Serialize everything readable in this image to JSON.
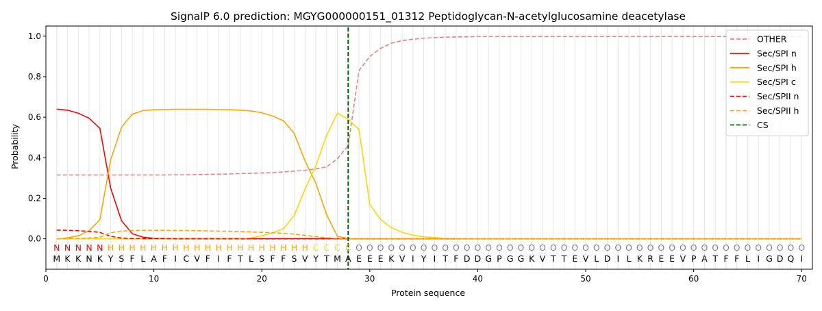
{
  "chart_data": {
    "type": "line",
    "title": "SignalP 6.0 prediction: MGYG000000151_01312 Peptidoglycan-N-acetylglucosamine deacetylase",
    "xlabel": "Protein sequence",
    "ylabel": "Probability",
    "xlim": [
      0,
      71
    ],
    "ylim": [
      -0.15,
      1.05
    ],
    "x_ticks": [
      0,
      10,
      20,
      30,
      40,
      50,
      60,
      70
    ],
    "y_ticks": [
      0.0,
      0.2,
      0.4,
      0.6,
      0.8,
      1.0
    ],
    "grid": "vertical lines at each residue",
    "legend_position": "upper right",
    "sequence": [
      "M",
      "K",
      "K",
      "N",
      "K",
      "Y",
      "S",
      "F",
      "L",
      "A",
      "F",
      "I",
      "C",
      "V",
      "F",
      "I",
      "F",
      "T",
      "L",
      "S",
      "F",
      "F",
      "S",
      "V",
      "Y",
      "T",
      "M",
      "A",
      "E",
      "E",
      "E",
      "K",
      "V",
      "I",
      "Y",
      "I",
      "T",
      "F",
      "D",
      "D",
      "G",
      "P",
      "G",
      "G",
      "K",
      "V",
      "T",
      "T",
      "E",
      "V",
      "L",
      "D",
      "I",
      "L",
      "K",
      "R",
      "E",
      "E",
      "V",
      "P",
      "A",
      "T",
      "F",
      "F",
      "L",
      "I",
      "G",
      "D",
      "Q",
      "I"
    ],
    "region_labels": [
      "N",
      "N",
      "N",
      "N",
      "N",
      "H",
      "H",
      "H",
      "H",
      "H",
      "H",
      "H",
      "H",
      "H",
      "H",
      "H",
      "H",
      "H",
      "H",
      "H",
      "H",
      "H",
      "H",
      "H",
      "C",
      "C",
      "C",
      "C",
      "O",
      "O",
      "O",
      "O",
      "O",
      "O",
      "O",
      "O",
      "O",
      "O",
      "O",
      "O",
      "O",
      "O",
      "O",
      "O",
      "O",
      "O",
      "O",
      "O",
      "O",
      "O",
      "O",
      "O",
      "O",
      "O",
      "O",
      "O",
      "O",
      "O",
      "O",
      "O",
      "O",
      "O",
      "O",
      "O",
      "O",
      "O",
      "O",
      "O",
      "O",
      "O"
    ],
    "region_colors": {
      "N": "#ff0000",
      "H": "#ffa500",
      "C": "#ffd700",
      "O": "#808080"
    },
    "cleavage_site": 28,
    "series": [
      {
        "name": "OTHER",
        "color": "#f08080",
        "dash": "dashed",
        "values": [
          0.315,
          0.315,
          0.315,
          0.315,
          0.315,
          0.315,
          0.315,
          0.315,
          0.315,
          0.315,
          0.315,
          0.316,
          0.316,
          0.317,
          0.318,
          0.319,
          0.32,
          0.322,
          0.323,
          0.325,
          0.327,
          0.33,
          0.334,
          0.338,
          0.345,
          0.355,
          0.395,
          0.46,
          0.83,
          0.9,
          0.94,
          0.965,
          0.978,
          0.985,
          0.99,
          0.993,
          0.995,
          0.996,
          0.997,
          0.998,
          0.998,
          0.998,
          0.998,
          0.998,
          0.998,
          0.998,
          0.998,
          0.998,
          0.998,
          0.998,
          0.998,
          0.998,
          0.998,
          0.998,
          0.998,
          0.998,
          0.998,
          0.998,
          0.998,
          0.998,
          0.998,
          0.998,
          0.998,
          0.998,
          0.998,
          0.998,
          0.998,
          0.998,
          0.998,
          0.998
        ]
      },
      {
        "name": "Sec/SPI n",
        "color": "#ff0000",
        "dash": "solid",
        "values": [
          0.64,
          0.635,
          0.62,
          0.595,
          0.545,
          0.25,
          0.09,
          0.025,
          0.008,
          0.003,
          0.002,
          0.001,
          0.001,
          0.001,
          0.001,
          0.001,
          0.001,
          0.001,
          0.001,
          0.001,
          0.001,
          0.001,
          0.001,
          0.001,
          0.001,
          0.001,
          0.001,
          0.001,
          0.0,
          0.0,
          0.0,
          0.0,
          0.0,
          0.0,
          0.0,
          0.0,
          0.0,
          0.0,
          0.0,
          0.0,
          0.0,
          0.0,
          0.0,
          0.0,
          0.0,
          0.0,
          0.0,
          0.0,
          0.0,
          0.0,
          0.0,
          0.0,
          0.0,
          0.0,
          0.0,
          0.0,
          0.0,
          0.0,
          0.0,
          0.0,
          0.0,
          0.0,
          0.0,
          0.0,
          0.0,
          0.0,
          0.0,
          0.0,
          0.0,
          0.0
        ]
      },
      {
        "name": "Sec/SPI h",
        "color": "#ffa500",
        "dash": "solid",
        "values": [
          0.0,
          0.005,
          0.015,
          0.04,
          0.095,
          0.39,
          0.55,
          0.615,
          0.633,
          0.637,
          0.638,
          0.639,
          0.639,
          0.639,
          0.639,
          0.638,
          0.637,
          0.635,
          0.631,
          0.622,
          0.606,
          0.583,
          0.52,
          0.385,
          0.275,
          0.12,
          0.012,
          0.002,
          0.0,
          0.0,
          0.0,
          0.0,
          0.0,
          0.0,
          0.0,
          0.0,
          0.0,
          0.0,
          0.0,
          0.0,
          0.0,
          0.0,
          0.0,
          0.0,
          0.0,
          0.0,
          0.0,
          0.0,
          0.0,
          0.0,
          0.0,
          0.0,
          0.0,
          0.0,
          0.0,
          0.0,
          0.0,
          0.0,
          0.0,
          0.0,
          0.0,
          0.0,
          0.0,
          0.0,
          0.0,
          0.0,
          0.0,
          0.0,
          0.0,
          0.0
        ]
      },
      {
        "name": "Sec/SPI c",
        "color": "#ffd700",
        "dash": "solid",
        "values": [
          0.0,
          0.0,
          0.0,
          0.0,
          0.0,
          0.0,
          0.0,
          0.0,
          0.0,
          0.0,
          0.0,
          0.0,
          0.0,
          0.0,
          0.0,
          0.0,
          0.0,
          0.0,
          0.005,
          0.015,
          0.03,
          0.05,
          0.115,
          0.245,
          0.36,
          0.51,
          0.62,
          0.59,
          0.54,
          0.17,
          0.095,
          0.055,
          0.032,
          0.018,
          0.01,
          0.006,
          0.003,
          0.002,
          0.001,
          0.0,
          0.0,
          0.0,
          0.0,
          0.0,
          0.0,
          0.0,
          0.0,
          0.0,
          0.0,
          0.0,
          0.0,
          0.0,
          0.0,
          0.0,
          0.0,
          0.0,
          0.0,
          0.0,
          0.0,
          0.0,
          0.0,
          0.0,
          0.0,
          0.0,
          0.0,
          0.0,
          0.0,
          0.0,
          0.0,
          0.0
        ]
      },
      {
        "name": "Sec/SPII n",
        "color": "#ff0000",
        "dash": "dashed",
        "values": [
          0.043,
          0.042,
          0.04,
          0.037,
          0.032,
          0.012,
          0.004,
          0.002,
          0.001,
          0.001,
          0.001,
          0.0,
          0.0,
          0.0,
          0.0,
          0.0,
          0.0,
          0.0,
          0.0,
          0.0,
          0.0,
          0.0,
          0.0,
          0.0,
          0.0,
          0.0,
          0.0,
          0.0,
          0.0,
          0.0,
          0.0,
          0.0,
          0.0,
          0.0,
          0.0,
          0.0,
          0.0,
          0.0,
          0.0,
          0.0,
          0.0,
          0.0,
          0.0,
          0.0,
          0.0,
          0.0,
          0.0,
          0.0,
          0.0,
          0.0,
          0.0,
          0.0,
          0.0,
          0.0,
          0.0,
          0.0,
          0.0,
          0.0,
          0.0,
          0.0,
          0.0,
          0.0,
          0.0,
          0.0,
          0.0,
          0.0,
          0.0,
          0.0,
          0.0,
          0.0
        ]
      },
      {
        "name": "Sec/SPII h",
        "color": "#ffa500",
        "dash": "dashed",
        "values": [
          0.0,
          0.001,
          0.002,
          0.004,
          0.008,
          0.03,
          0.038,
          0.041,
          0.042,
          0.042,
          0.042,
          0.041,
          0.041,
          0.04,
          0.039,
          0.038,
          0.037,
          0.036,
          0.034,
          0.032,
          0.03,
          0.027,
          0.023,
          0.017,
          0.011,
          0.005,
          0.002,
          0.001,
          0.0,
          0.0,
          0.0,
          0.0,
          0.0,
          0.0,
          0.0,
          0.0,
          0.0,
          0.0,
          0.0,
          0.0,
          0.0,
          0.0,
          0.0,
          0.0,
          0.0,
          0.0,
          0.0,
          0.0,
          0.0,
          0.0,
          0.0,
          0.0,
          0.0,
          0.0,
          0.0,
          0.0,
          0.0,
          0.0,
          0.0,
          0.0,
          0.0,
          0.0,
          0.0,
          0.0,
          0.0,
          0.0,
          0.0,
          0.0,
          0.0,
          0.0
        ]
      }
    ],
    "legend": [
      {
        "name": "OTHER",
        "color": "#f08080",
        "dash": "dashed"
      },
      {
        "name": "Sec/SPI n",
        "color": "#ff0000",
        "dash": "solid"
      },
      {
        "name": "Sec/SPI h",
        "color": "#ffa500",
        "dash": "solid"
      },
      {
        "name": "Sec/SPI c",
        "color": "#ffd700",
        "dash": "solid"
      },
      {
        "name": "Sec/SPII n",
        "color": "#ff0000",
        "dash": "dashed"
      },
      {
        "name": "Sec/SPII h",
        "color": "#ffa500",
        "dash": "dashed"
      },
      {
        "name": "CS",
        "color": "#006400",
        "dash": "dashed"
      }
    ]
  }
}
